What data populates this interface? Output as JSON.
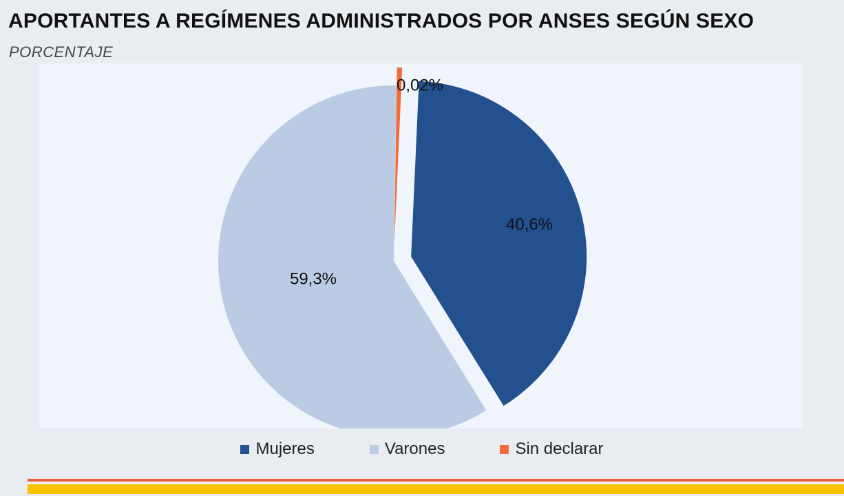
{
  "header": {
    "title": "APORTANTES A REGÍMENES ADMINISTRADOS POR ANSES SEGÚN SEXO",
    "subtitle": "PORCENTAJE"
  },
  "chart_data": {
    "type": "pie",
    "title": "APORTANTES A REGÍMENES ADMINISTRADOS POR ANSES SEGÚN SEXO",
    "subtitle": "PORCENTAJE",
    "slices": [
      {
        "name": "Mujeres",
        "value": 40.6,
        "label": "40,6%",
        "color": "#23508e",
        "exploded": true
      },
      {
        "name": "Varones",
        "value": 59.3,
        "label": "59,3%",
        "color": "#bccbe4",
        "exploded": false
      },
      {
        "name": "Sin declarar",
        "value": 0.02,
        "label": "0,02%",
        "color": "#f26b3a",
        "exploded": true
      }
    ],
    "legend": "bottom"
  },
  "colors": {
    "background": "#e9ecf1",
    "plot_background": "#f0f4fb",
    "footer_orange": "#e9603a",
    "footer_yellow": "#f7c200"
  }
}
